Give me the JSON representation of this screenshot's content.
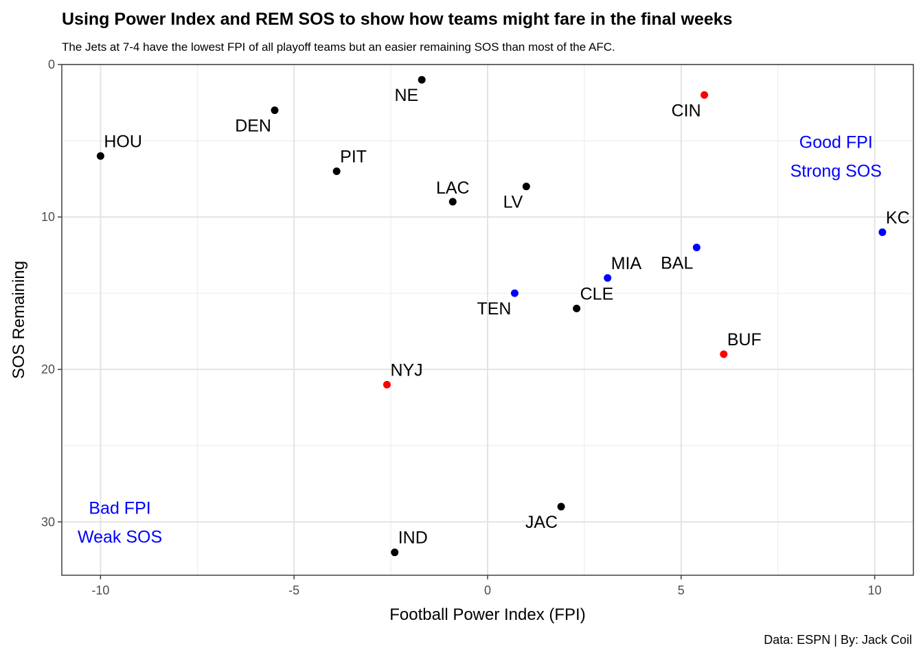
{
  "chart_data": {
    "type": "scatter",
    "title": "Using Power Index and REM SOS to show how teams might fare in the final weeks",
    "subtitle": "The Jets at 7-4 have the lowest FPI of all playoff teams but an easier remaining SOS than most of the AFC.",
    "caption": "Data: ESPN | By: Jack Coil",
    "xlabel": "Football Power Index (FPI)",
    "ylabel": "SOS Remaining",
    "xlim": [
      -11,
      11
    ],
    "ylim": [
      0,
      33.5
    ],
    "y_reversed": true,
    "x_ticks": [
      -10,
      -5,
      0,
      5,
      10
    ],
    "x_tick_labels": [
      "-10",
      "-5",
      "0",
      "5",
      "10"
    ],
    "y_ticks": [
      0,
      10,
      20,
      30
    ],
    "y_tick_labels": [
      "0",
      "10",
      "20",
      "30"
    ],
    "grid": true,
    "colors": {
      "black": "#000000",
      "red": "#ff0000",
      "blue": "#0000ff",
      "annotation": "#0000ff"
    },
    "points": [
      {
        "team": "NE",
        "x": -1.7,
        "y": 1,
        "color": "black",
        "label_side": "left-below"
      },
      {
        "team": "CIN",
        "x": 5.6,
        "y": 2,
        "color": "red",
        "label_side": "left-below"
      },
      {
        "team": "DEN",
        "x": -5.5,
        "y": 3,
        "color": "black",
        "label_side": "left-below"
      },
      {
        "team": "HOU",
        "x": -10,
        "y": 6,
        "color": "black",
        "label_side": "right-above"
      },
      {
        "team": "PIT",
        "x": -3.9,
        "y": 7,
        "color": "black",
        "label_side": "right-above"
      },
      {
        "team": "LV",
        "x": 1.0,
        "y": 8,
        "color": "black",
        "label_side": "left-below"
      },
      {
        "team": "LAC",
        "x": -0.9,
        "y": 9,
        "color": "black",
        "label_side": "center-above"
      },
      {
        "team": "KC",
        "x": 10.2,
        "y": 11,
        "color": "blue",
        "label_side": "right-above"
      },
      {
        "team": "BAL",
        "x": 5.4,
        "y": 12,
        "color": "blue",
        "label_side": "left-below"
      },
      {
        "team": "MIA",
        "x": 3.1,
        "y": 14,
        "color": "blue",
        "label_side": "right-above"
      },
      {
        "team": "TEN",
        "x": 0.7,
        "y": 15,
        "color": "blue",
        "label_side": "left-below"
      },
      {
        "team": "CLE",
        "x": 2.3,
        "y": 16,
        "color": "black",
        "label_side": "right-above"
      },
      {
        "team": "BUF",
        "x": 6.1,
        "y": 19,
        "color": "red",
        "label_side": "right-above"
      },
      {
        "team": "NYJ",
        "x": -2.6,
        "y": 21,
        "color": "red",
        "label_side": "right-above"
      },
      {
        "team": "JAC",
        "x": 1.9,
        "y": 29,
        "color": "black",
        "label_side": "left-below"
      },
      {
        "team": "IND",
        "x": -2.4,
        "y": 32,
        "color": "black",
        "label_side": "right-above"
      }
    ],
    "annotations": [
      {
        "lines": [
          "Good FPI",
          "Strong SOS"
        ],
        "x": 9,
        "y": 6
      },
      {
        "lines": [
          "Bad FPI",
          "Weak SOS"
        ],
        "x": -9.5,
        "y": 30
      }
    ]
  }
}
